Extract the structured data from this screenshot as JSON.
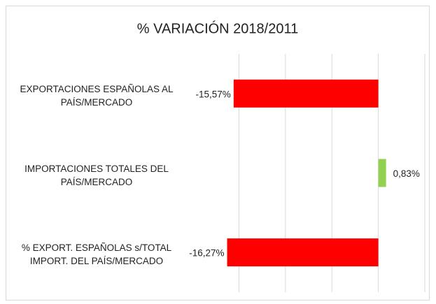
{
  "chart_data": {
    "type": "barh",
    "title": "% VARIACIÓN 2018/2011",
    "categories": [
      "EXPORTACIONES ESPAÑOLAS AL PAÍS/MERCADO",
      "IMPORTACIONES TOTALES DEL PAÍS/MERCADO",
      "% EXPORT. ESPAÑOLAS s/TOTAL IMPORT. DEL PAÍS/MERCADO"
    ],
    "values": [
      -15.57,
      0.83,
      -16.27
    ],
    "value_labels": [
      "-15,57%",
      "0,83%",
      "-16,27%"
    ],
    "colors": [
      "#ff0000",
      "#92d050",
      "#ff0000"
    ],
    "xlim": [
      -20,
      5
    ],
    "xticks": [
      -15,
      -10,
      -5,
      0,
      5
    ],
    "grid": true
  }
}
